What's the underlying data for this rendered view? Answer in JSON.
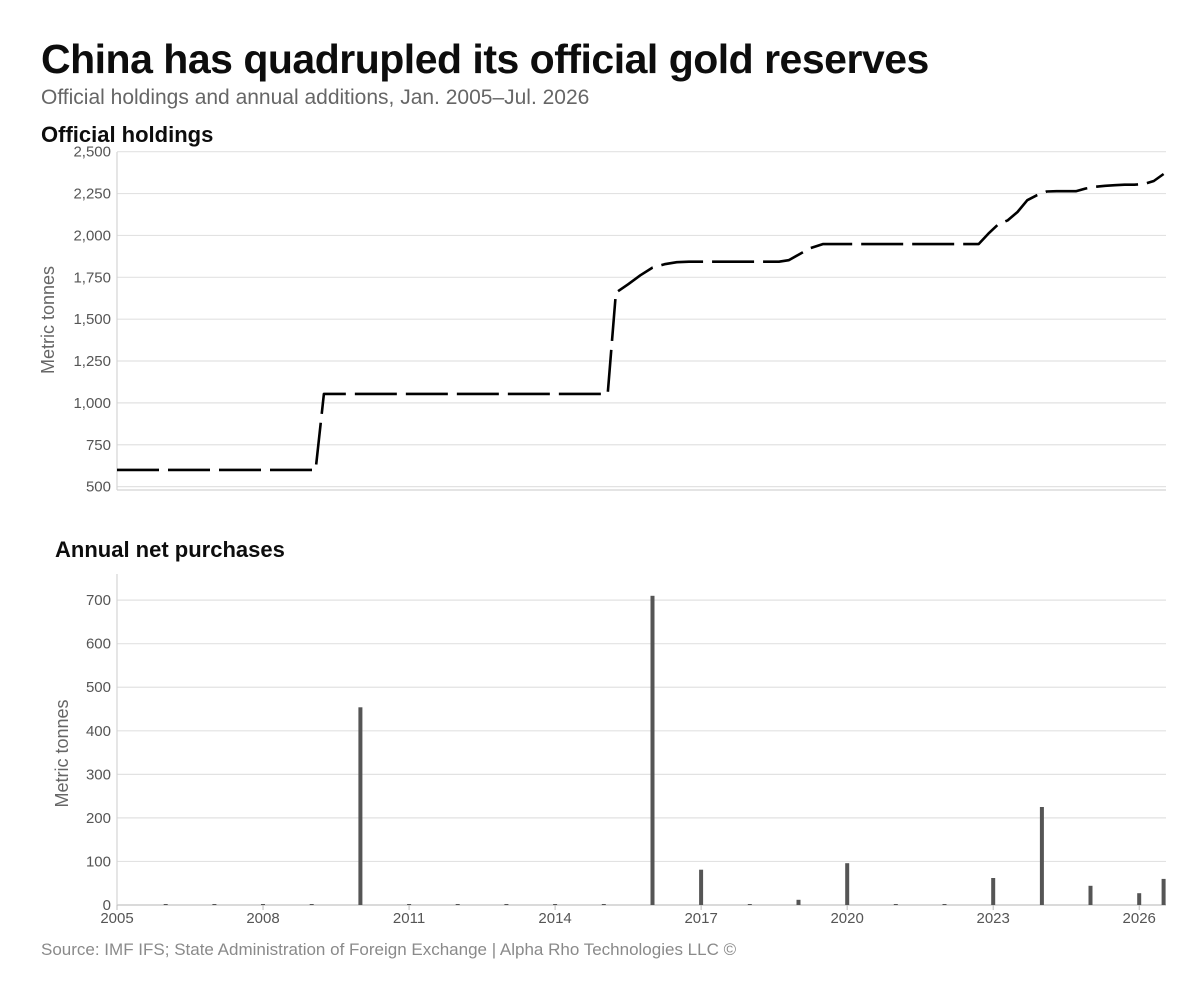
{
  "header": {
    "title": "China has quadrupled its official gold reserves",
    "subtitle": "Official holdings and annual additions, Jan. 2005–Jul. 2026"
  },
  "footer": {
    "source": "Source: IMF IFS; State Administration of Foreign Exchange | Alpha Rho Technologies LLC ©"
  },
  "chart_data": [
    {
      "type": "line",
      "title": "Official holdings",
      "ylabel": "Metric tonnes",
      "xlabel": "",
      "ylim": [
        480,
        2510
      ],
      "xlim": [
        2005.0,
        2026.55
      ],
      "yticks": [
        500,
        750,
        1000,
        1250,
        1500,
        1750,
        2000,
        2250,
        2500
      ],
      "ytick_labels": [
        "500",
        "750",
        "1,000",
        "1,250",
        "1,500",
        "1,750",
        "2,000",
        "2,250",
        "2,500"
      ],
      "grid": true,
      "line_style": "dashed",
      "color": "#000000",
      "series": [
        {
          "x": [
            2005.0,
            2009.0,
            2009.08,
            2009.25,
            2015.0,
            2015.08,
            2015.25,
            2015.5,
            2015.75,
            2016.0,
            2016.25,
            2016.5,
            2016.75,
            2017.0,
            2018.0,
            2018.6,
            2018.8,
            2019.0,
            2019.25,
            2019.5,
            2019.75,
            2020.0,
            2021.0,
            2022.0,
            2022.7,
            2022.9,
            2023.1,
            2023.3,
            2023.5,
            2023.7,
            2023.9,
            2024.1,
            2024.3,
            2024.5,
            2024.7,
            2024.9,
            2025.1,
            2025.3,
            2025.5,
            2025.7,
            2025.9,
            2026.1,
            2026.3,
            2026.5
          ],
          "y": [
            600,
            600,
            600,
            1054,
            1054,
            1054,
            1658,
            1708,
            1762,
            1808,
            1828,
            1840,
            1843,
            1843,
            1843,
            1843,
            1852,
            1885,
            1925,
            1948,
            1948,
            1948,
            1948,
            1948,
            1948,
            2010,
            2065,
            2090,
            2140,
            2210,
            2240,
            2262,
            2264,
            2264,
            2264,
            2280,
            2290,
            2296,
            2300,
            2303,
            2303,
            2307,
            2325,
            2367
          ]
        }
      ]
    },
    {
      "type": "bar",
      "title": "Annual net purchases",
      "ylabel": "Metric tonnes",
      "xlabel": "",
      "ylim": [
        0,
        760
      ],
      "xlim": [
        2005.0,
        2026.55
      ],
      "yticks": [
        0,
        100,
        200,
        300,
        400,
        500,
        600,
        700
      ],
      "xticks": [
        2005,
        2008,
        2011,
        2014,
        2017,
        2020,
        2023,
        2026
      ],
      "grid": true,
      "bar_color": "#555555",
      "x": [
        2006,
        2007,
        2008,
        2009,
        2010,
        2011,
        2012,
        2013,
        2014,
        2015,
        2016,
        2017,
        2018,
        2019,
        2020,
        2021,
        2022,
        2023,
        2024,
        2025,
        2026,
        2026.5
      ],
      "values": [
        0,
        0,
        0,
        0,
        454,
        0,
        0,
        0,
        0,
        0,
        710,
        81,
        0,
        12,
        96,
        0,
        0,
        62,
        225,
        44,
        27,
        60
      ]
    }
  ]
}
